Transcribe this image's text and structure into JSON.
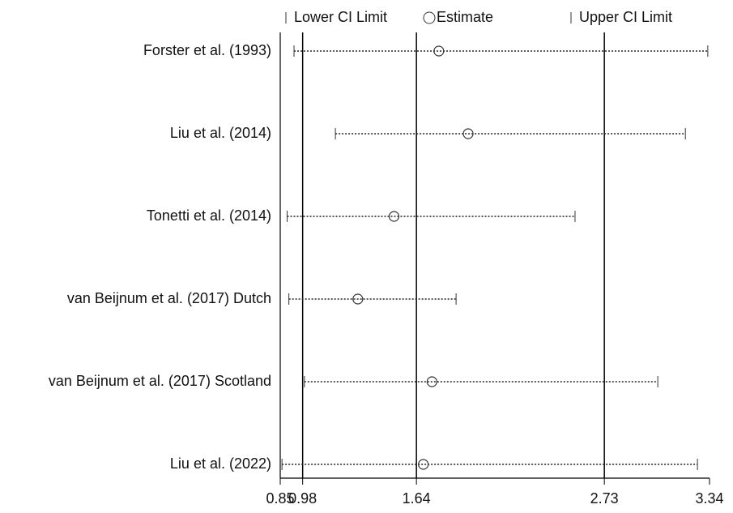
{
  "chart_data": {
    "type": "forest",
    "categories": [
      "Forster et al. (1993)",
      "Liu et al. (2014)",
      "Tonetti et al. (2014)",
      "van Beijnum et al. (2017) Dutch",
      "van Beijnum et al. (2017) Scotland",
      "Liu et al. (2022)"
    ],
    "series": [
      {
        "name": "Lower CI Limit",
        "color": "#333333",
        "values": [
          0.93,
          1.17,
          0.89,
          0.9,
          0.99,
          0.86
        ]
      },
      {
        "name": "Estimate",
        "color": "#333333",
        "values": [
          1.77,
          1.94,
          1.51,
          1.3,
          1.73,
          1.68
        ]
      },
      {
        "name": "Upper CI Limit",
        "color": "#333333",
        "values": [
          3.33,
          3.2,
          2.56,
          1.87,
          3.04,
          3.27
        ]
      }
    ],
    "xlim": [
      0.85,
      3.34
    ],
    "xticks": [
      0.85,
      0.98,
      1.64,
      2.73,
      3.34
    ],
    "reference_lines": [
      0.98,
      1.64,
      2.73
    ]
  }
}
